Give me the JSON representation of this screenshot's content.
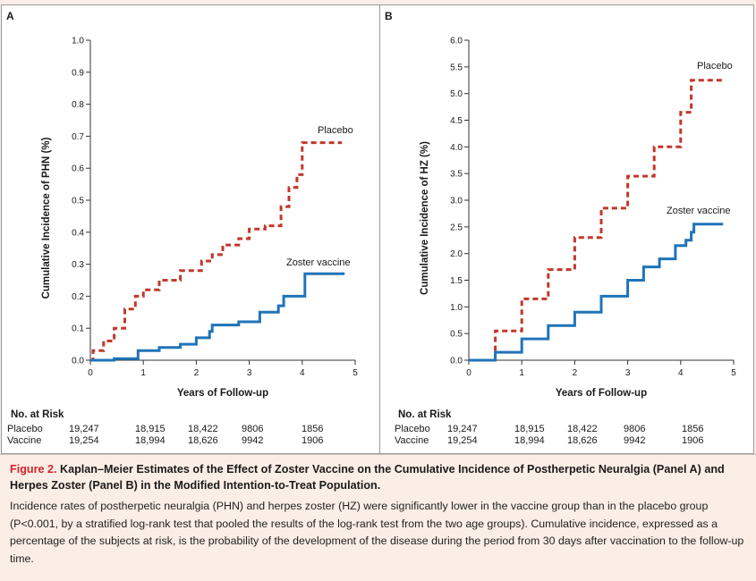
{
  "panels": [
    {
      "id": "A",
      "letter": "A",
      "ylabel": "Cumulative Incidence of PHN (%)",
      "xlabel": "Years of Follow-up",
      "at_risk": {
        "title": "No. at Risk",
        "rows": [
          {
            "label": "Placebo",
            "values": [
              "19,247",
              "18,915",
              "18,422",
              "9806",
              "1856"
            ]
          },
          {
            "label": "Vaccine",
            "values": [
              "19,254",
              "18,994",
              "18,626",
              "9942",
              "1906"
            ]
          }
        ]
      }
    },
    {
      "id": "B",
      "letter": "B",
      "ylabel": "Cumulative Incidence of HZ (%)",
      "xlabel": "Years of Follow-up",
      "at_risk": {
        "title": "No. at Risk",
        "rows": [
          {
            "label": "Placebo",
            "values": [
              "19,247",
              "18,915",
              "18,422",
              "9806",
              "1856"
            ]
          },
          {
            "label": "Vaccine",
            "values": [
              "19,254",
              "18,994",
              "18,626",
              "9942",
              "1906"
            ]
          }
        ]
      }
    }
  ],
  "chart_data": [
    {
      "type": "line",
      "panel": "A",
      "ylabel": "Cumulative Incidence of PHN (%)",
      "xlabel": "Years of Follow-up",
      "xlim": [
        0,
        5
      ],
      "ylim": [
        0,
        1.0
      ],
      "xticks": [
        "0",
        "1",
        "2",
        "3",
        "4",
        "5"
      ],
      "yticks": [
        "0.0",
        "0.1",
        "0.2",
        "0.3",
        "0.4",
        "0.5",
        "0.6",
        "0.7",
        "0.8",
        "0.9",
        "1.0"
      ],
      "series": [
        {
          "name": "Placebo",
          "color": "#c0392b",
          "style": "dashed",
          "points": [
            [
              0,
              0
            ],
            [
              0.05,
              0.03
            ],
            [
              0.25,
              0.06
            ],
            [
              0.45,
              0.1
            ],
            [
              0.65,
              0.16
            ],
            [
              0.85,
              0.2
            ],
            [
              1.0,
              0.22
            ],
            [
              1.3,
              0.25
            ],
            [
              1.7,
              0.28
            ],
            [
              2.1,
              0.31
            ],
            [
              2.3,
              0.33
            ],
            [
              2.5,
              0.36
            ],
            [
              2.8,
              0.38
            ],
            [
              3.0,
              0.41
            ],
            [
              3.3,
              0.42
            ],
            [
              3.6,
              0.48
            ],
            [
              3.75,
              0.54
            ],
            [
              3.9,
              0.58
            ],
            [
              4.0,
              0.68
            ],
            [
              4.25,
              0.68
            ],
            [
              4.75,
              0.68
            ]
          ]
        },
        {
          "name": "Zoster vaccine",
          "color": "#1f74b8",
          "style": "solid",
          "points": [
            [
              0,
              0
            ],
            [
              0.45,
              0.005
            ],
            [
              0.9,
              0.03
            ],
            [
              1.3,
              0.04
            ],
            [
              1.7,
              0.05
            ],
            [
              2.0,
              0.07
            ],
            [
              2.25,
              0.09
            ],
            [
              2.3,
              0.11
            ],
            [
              2.8,
              0.12
            ],
            [
              3.2,
              0.15
            ],
            [
              3.55,
              0.17
            ],
            [
              3.65,
              0.2
            ],
            [
              3.8,
              0.2
            ],
            [
              4.05,
              0.27
            ],
            [
              4.5,
              0.27
            ],
            [
              4.8,
              0.27
            ]
          ]
        }
      ],
      "annotations": [
        "Placebo",
        "Zoster vaccine"
      ]
    },
    {
      "type": "line",
      "panel": "B",
      "ylabel": "Cumulative Incidence of HZ (%)",
      "xlabel": "Years of Follow-up",
      "xlim": [
        0,
        5
      ],
      "ylim": [
        0,
        6.0
      ],
      "xticks": [
        "0",
        "1",
        "2",
        "3",
        "4",
        "5"
      ],
      "yticks": [
        "0.0",
        "0.5",
        "1.0",
        "1.5",
        "2.0",
        "2.5",
        "3.0",
        "3.5",
        "4.0",
        "4.5",
        "5.0",
        "5.5",
        "6.0"
      ],
      "series": [
        {
          "name": "Placebo",
          "color": "#c0392b",
          "style": "dashed",
          "points": [
            [
              0,
              0
            ],
            [
              0.5,
              0.55
            ],
            [
              1.0,
              1.15
            ],
            [
              1.5,
              1.7
            ],
            [
              2.0,
              2.3
            ],
            [
              2.5,
              2.85
            ],
            [
              3.0,
              3.45
            ],
            [
              3.5,
              4.0
            ],
            [
              4.0,
              4.65
            ],
            [
              4.2,
              5.25
            ],
            [
              4.8,
              5.25
            ]
          ]
        },
        {
          "name": "Zoster vaccine",
          "color": "#1f74b8",
          "style": "solid",
          "points": [
            [
              0,
              0
            ],
            [
              0.5,
              0.15
            ],
            [
              1.0,
              0.4
            ],
            [
              1.5,
              0.65
            ],
            [
              2.0,
              0.9
            ],
            [
              2.5,
              1.2
            ],
            [
              3.0,
              1.5
            ],
            [
              3.3,
              1.75
            ],
            [
              3.6,
              1.9
            ],
            [
              3.9,
              2.15
            ],
            [
              4.1,
              2.25
            ],
            [
              4.2,
              2.4
            ],
            [
              4.25,
              2.55
            ],
            [
              4.8,
              2.55
            ]
          ]
        }
      ],
      "annotations": [
        "Placebo",
        "Zoster vaccine"
      ]
    }
  ],
  "caption": {
    "figure_label": "Figure 2.",
    "title": "Kaplan–Meier Estimates of the Effect of Zoster Vaccine on the Cumulative Incidence of Postherpetic Neuralgia (Panel A) and Herpes Zoster (Panel B) in the Modified Intention-to-Treat Population.",
    "body": "Incidence rates of postherpetic neuralgia (PHN) and herpes zoster (HZ) were significantly lower in the vaccine group than in the placebo group (P<0.001, by a stratified log-rank test that pooled the results of the log-rank test from the two age groups). Cumulative incidence, expressed as a percentage of the subjects at risk, is the probability of the development of the disease during the period from 30 days after vaccination to the follow-up time."
  }
}
